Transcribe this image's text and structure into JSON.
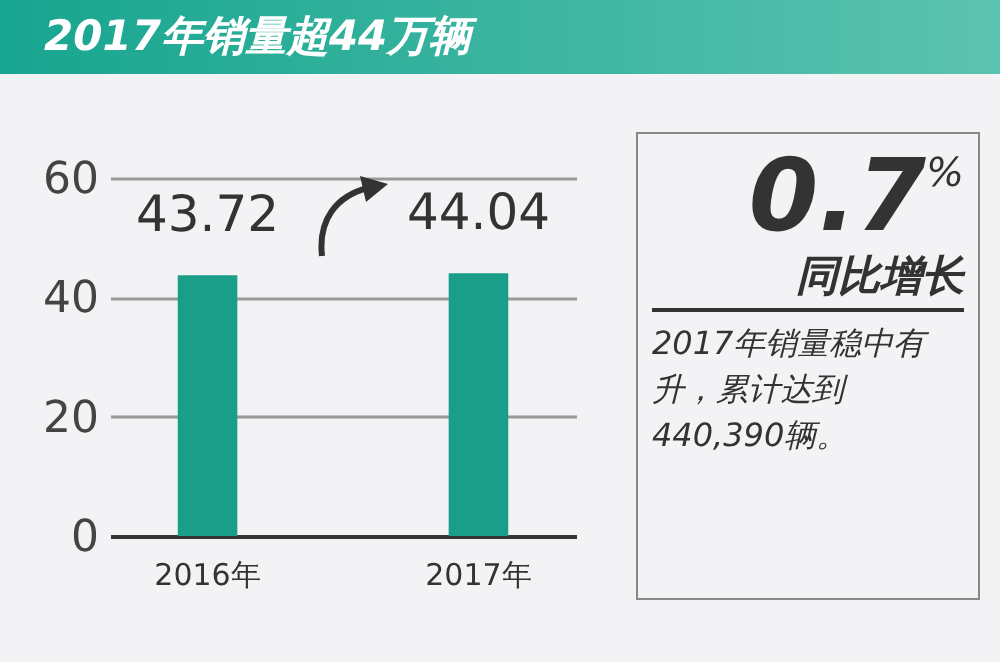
{
  "chart_data": [
    {
      "type": "bar",
      "title": "2017年销量超44万辆",
      "categories": [
        "2016年",
        "2017年"
      ],
      "values": [
        43.72,
        44.04
      ],
      "color": "#1a9e8a",
      "ylim": [
        0,
        60
      ],
      "yticks": [
        0,
        20,
        40,
        60
      ],
      "grid": "y",
      "data_labels": true
    },
    {
      "type": "other",
      "annotations": [
        "0.7$^{%}$",
        "同比增长",
        "2017年销量稳中有升，累计达到440,390辆。"
      ]
    }
  ]
}
